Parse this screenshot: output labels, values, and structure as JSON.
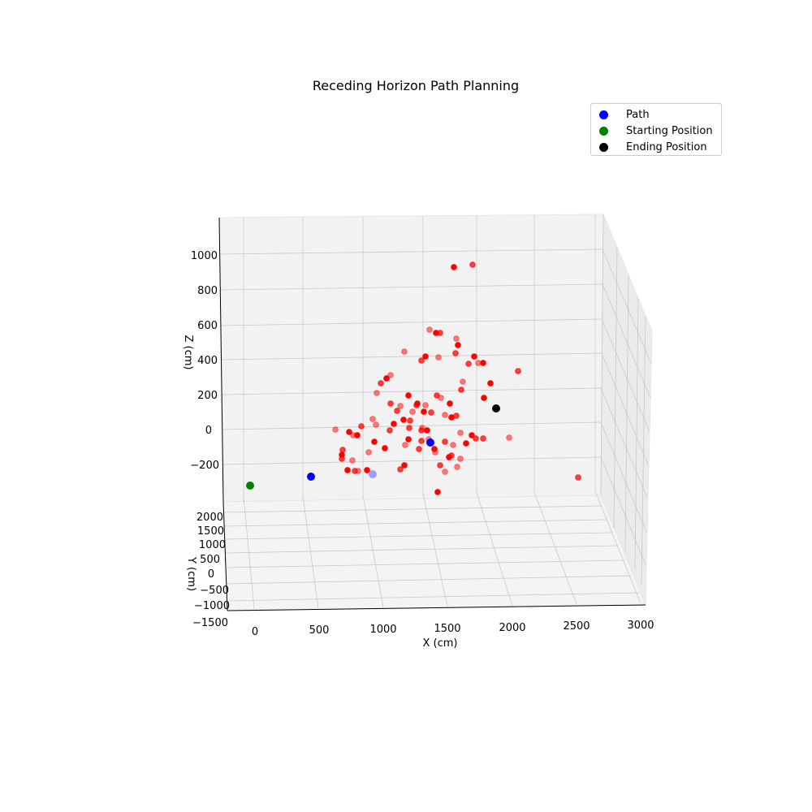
{
  "chart_data": {
    "type": "scatter",
    "title": "Receding Horizon Path Planning",
    "xlabel": "X (cm)",
    "ylabel": "Y (cm)",
    "zlabel": "Z (cm)",
    "x_ticks": [
      "0",
      "500",
      "1000",
      "1500",
      "2000",
      "2500",
      "3000"
    ],
    "y_ticks": [
      "−1500",
      "−1000",
      "−500",
      "0",
      "500",
      "1000",
      "1500",
      "2000"
    ],
    "z_ticks": [
      "−200",
      "0",
      "200",
      "400",
      "600",
      "800",
      "1000"
    ],
    "legend": {
      "position": "upper right",
      "entries": [
        {
          "name": "Path",
          "color": "#0000ff"
        },
        {
          "name": "Starting Position",
          "color": "#008000"
        },
        {
          "name": "Ending Position",
          "color": "#000000"
        }
      ]
    },
    "obstacle_color": "#ff0000",
    "series": [
      {
        "name": "Path",
        "color": "#0000ff",
        "points": [
          {
            "x": 420,
            "y": 0,
            "z": -240
          },
          {
            "x": 900,
            "y": 1000,
            "z": -200
          },
          {
            "x": 1380,
            "y": 0,
            "z": -20
          }
        ]
      },
      {
        "name": "Starting Position",
        "color": "#008000",
        "points": [
          {
            "x": -30,
            "y": 0,
            "z": -320
          }
        ]
      },
      {
        "name": "Ending Position",
        "color": "#000000",
        "points": [
          {
            "x": 1880,
            "y": 0,
            "z": 150
          }
        ]
      }
    ]
  }
}
